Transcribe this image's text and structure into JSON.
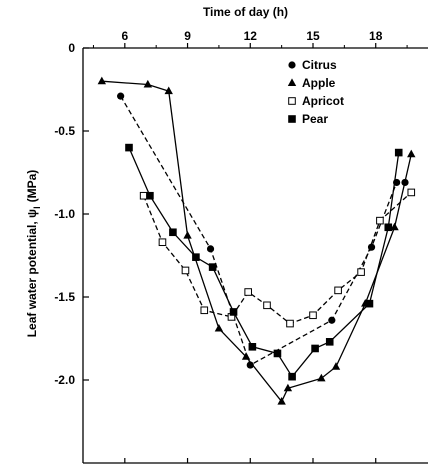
{
  "chart_data": {
    "type": "line",
    "xlabel": "Time of day (h)",
    "ylabel": "Leaf water potential, ψ",
    "ylabel_subscript": "l",
    "ylabel_unit": "(MPa)",
    "x_axis_position": "top",
    "xlim": [
      4,
      20.5
    ],
    "ylim": [
      -2.5,
      0
    ],
    "x_ticks": [
      6,
      9,
      12,
      15,
      18
    ],
    "x_tick_labels": [
      "6",
      "9",
      "12",
      "15",
      "18"
    ],
    "y_ticks": [
      0,
      -0.5,
      -1.0,
      -1.5,
      -2.0
    ],
    "y_tick_labels": [
      "0",
      "-0.5",
      "-1.0",
      "-1.5",
      "-2.0"
    ],
    "legend_position": "top-right",
    "grid": false,
    "series": [
      {
        "name": "Citrus",
        "marker": "circle-filled",
        "line": "dashed",
        "x": [
          5.8,
          10.1,
          12.0,
          15.9,
          17.8,
          19.0,
          19.4
        ],
        "y": [
          -0.29,
          -1.21,
          -1.91,
          -1.64,
          -1.2,
          -0.81,
          -0.81
        ]
      },
      {
        "name": "Apple",
        "marker": "triangle-filled",
        "line": "solid",
        "x": [
          4.9,
          7.1,
          8.1,
          9.0,
          10.5,
          11.8,
          13.5,
          13.8,
          15.4,
          16.1,
          17.5,
          18.9,
          19.7
        ],
        "y": [
          -0.2,
          -0.22,
          -0.26,
          -1.13,
          -1.69,
          -1.86,
          -2.13,
          -2.05,
          -1.99,
          -1.92,
          -1.54,
          -1.08,
          -0.64
        ]
      },
      {
        "name": "Apricot",
        "marker": "square-open",
        "line": "dashed",
        "x": [
          6.9,
          7.8,
          8.9,
          9.8,
          11.1,
          11.9,
          12.8,
          13.9,
          15.0,
          16.2,
          17.3,
          18.2,
          19.7
        ],
        "y": [
          -0.89,
          -1.17,
          -1.34,
          -1.58,
          -1.62,
          -1.47,
          -1.55,
          -1.66,
          -1.61,
          -1.46,
          -1.35,
          -1.04,
          -0.87
        ]
      },
      {
        "name": "Pear",
        "marker": "square-filled",
        "line": "solid",
        "x": [
          6.2,
          7.2,
          8.3,
          9.4,
          10.2,
          11.2,
          12.1,
          13.3,
          14.0,
          15.1,
          15.8,
          17.7,
          18.6,
          19.1
        ],
        "y": [
          -0.6,
          -0.89,
          -1.11,
          -1.26,
          -1.32,
          -1.59,
          -1.8,
          -1.84,
          -1.98,
          -1.81,
          -1.77,
          -1.54,
          -1.08,
          -0.63
        ]
      }
    ]
  }
}
